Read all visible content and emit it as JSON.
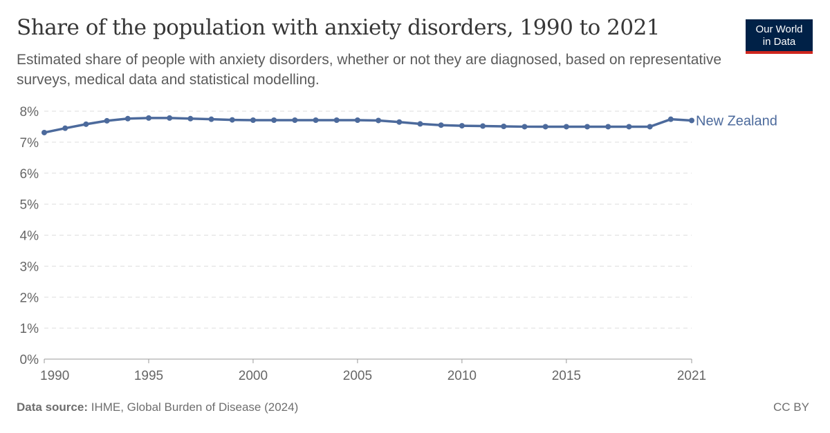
{
  "title": "Share of the population with anxiety disorders, 1990 to 2021",
  "subtitle": "Estimated share of people with anxiety disorders, whether or not they are diagnosed, based on representative surveys, medical data and statistical modelling.",
  "logo": {
    "line1": "Our World",
    "line2": "in Data"
  },
  "footer": {
    "source_label": "Data source:",
    "source": "IHME, Global Burden of Disease (2024)",
    "license": "CC BY"
  },
  "colors": {
    "series": "#4c6a9c",
    "logo_bg": "#002147",
    "logo_accent": "#ce261e"
  },
  "chart_data": {
    "type": "line",
    "title": "Share of the population with anxiety disorders, 1990 to 2021",
    "xlim": [
      1990,
      2021
    ],
    "ylim": [
      0,
      8
    ],
    "x_ticks": [
      1990,
      1995,
      2000,
      2005,
      2010,
      2015,
      2021
    ],
    "y_ticks": [
      "0%",
      "1%",
      "2%",
      "3%",
      "4%",
      "5%",
      "6%",
      "7%",
      "8%"
    ],
    "grid": "horizontal dashed",
    "series": [
      {
        "name": "New Zealand",
        "x": [
          1990,
          1991,
          1992,
          1993,
          1994,
          1995,
          1996,
          1997,
          1998,
          1999,
          2000,
          2001,
          2002,
          2003,
          2004,
          2005,
          2006,
          2007,
          2008,
          2009,
          2010,
          2011,
          2012,
          2013,
          2014,
          2015,
          2016,
          2017,
          2018,
          2019,
          2020,
          2021
        ],
        "values": [
          7.31,
          7.45,
          7.58,
          7.69,
          7.76,
          7.78,
          7.78,
          7.76,
          7.74,
          7.72,
          7.71,
          7.71,
          7.71,
          7.71,
          7.71,
          7.71,
          7.7,
          7.65,
          7.59,
          7.55,
          7.53,
          7.52,
          7.51,
          7.5,
          7.5,
          7.5,
          7.5,
          7.5,
          7.5,
          7.5,
          7.74,
          7.7
        ]
      }
    ]
  }
}
